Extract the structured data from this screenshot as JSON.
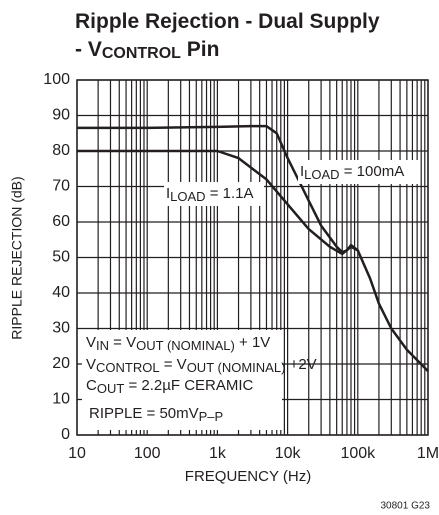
{
  "chart_data": {
    "type": "line",
    "title": [
      [
        {
          "text": "Ripple Rejection - Dual Supply"
        }
      ],
      [
        {
          "text": "- V"
        },
        {
          "text": "CONTROL",
          "sub": true
        },
        {
          "text": " Pin"
        }
      ]
    ],
    "x_label": "FREQUENCY (Hz)",
    "y_label": "RIPPLE REJECTION (dB)",
    "footnote": "30801 G23",
    "log_x": true,
    "grid": true,
    "xlim": [
      10,
      1000000
    ],
    "ylim": [
      0,
      100
    ],
    "xticks": [
      10,
      100,
      {
        "value": 1000,
        "label": "1k"
      },
      {
        "value": 10000,
        "label": "10k"
      },
      {
        "value": 100000,
        "label": "100k"
      },
      {
        "value": 1000000,
        "label": "1M"
      }
    ],
    "x_minor_grid": [
      20,
      30,
      40,
      50,
      60,
      70,
      80,
      90,
      200,
      300,
      400,
      500,
      600,
      700,
      800,
      900,
      2000,
      3000,
      4000,
      5000,
      6000,
      7000,
      8000,
      9000,
      20000,
      30000,
      40000,
      50000,
      60000,
      70000,
      80000,
      90000,
      200000,
      300000,
      400000,
      500000,
      600000,
      700000,
      800000,
      900000
    ],
    "yticks": [
      0,
      10,
      20,
      30,
      40,
      50,
      60,
      70,
      80,
      90,
      100
    ],
    "series": [
      {
        "color": "#231f20",
        "x": [
          10,
          100,
          1000,
          3000,
          5000,
          7000,
          10000,
          15000,
          20000,
          30000,
          50000,
          60000,
          70000,
          80000,
          100000,
          150000,
          200000,
          300000,
          500000,
          1000000
        ],
        "values": [
          86.5,
          86.5,
          86.8,
          87,
          87,
          85,
          78,
          71,
          66,
          59,
          53,
          51.5,
          52,
          53.5,
          52,
          44,
          37,
          30,
          24,
          18
        ]
      },
      {
        "color": "#231f20",
        "x": [
          10,
          100,
          1000,
          2000,
          5000,
          10000,
          20000,
          40000,
          60000,
          80000,
          100000
        ],
        "values": [
          80,
          80,
          80,
          78,
          72,
          65,
          58,
          53,
          51,
          53,
          52
        ]
      }
    ],
    "annotations": [
      {
        "parts": [
          {
            "text": "I"
          },
          {
            "text": "LOAD",
            "sub": true
          },
          {
            "text": " = 100mA"
          }
        ]
      },
      {
        "parts": [
          {
            "text": "I"
          },
          {
            "text": "LOAD",
            "sub": true
          },
          {
            "text": " = 1.1A"
          }
        ]
      },
      {
        "parts": [
          {
            "text": "V"
          },
          {
            "text": "IN",
            "sub": true
          },
          {
            "text": " = V"
          },
          {
            "text": "OUT (NOMINAL)",
            "sub": true
          },
          {
            "text": " + 1V"
          }
        ]
      },
      {
        "parts": [
          {
            "text": "V"
          },
          {
            "text": "CONTROL",
            "sub": true
          },
          {
            "text": " = V"
          },
          {
            "text": "OUT (NOMINAL)",
            "sub": true
          },
          {
            "text": " +2V"
          }
        ]
      },
      {
        "parts": [
          {
            "text": "C"
          },
          {
            "text": "OUT",
            "sub": true
          },
          {
            "text": " = 2.2µF CERAMIC"
          }
        ]
      },
      {
        "parts": [
          {
            "text": "RIPPLE = 50mV"
          },
          {
            "text": "P–P",
            "sub": true
          }
        ]
      }
    ]
  }
}
